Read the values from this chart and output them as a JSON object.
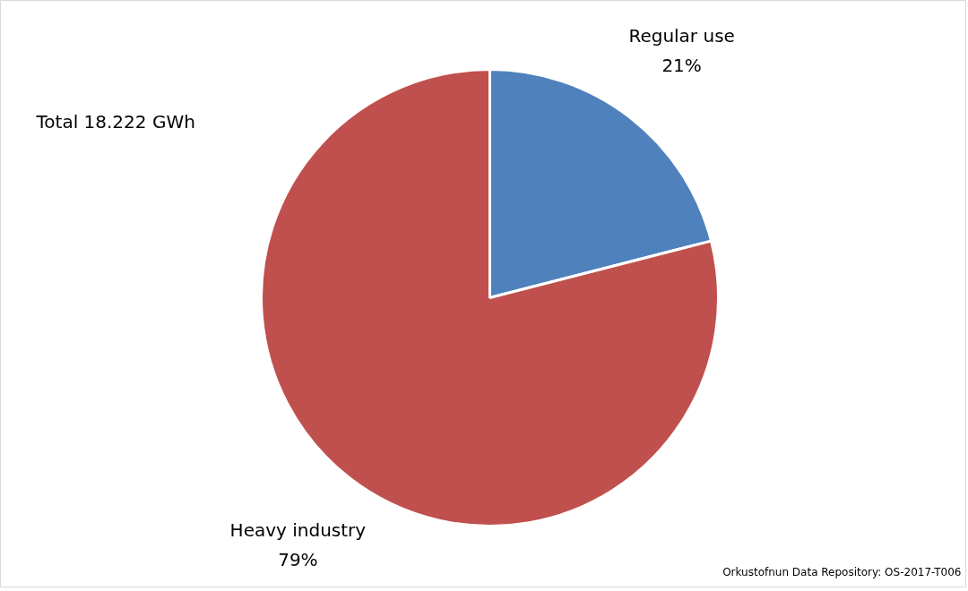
{
  "chart_data": {
    "type": "pie",
    "categories": [
      "Regular use",
      "Heavy industry"
    ],
    "values": [
      21,
      79
    ],
    "colors": [
      "#4f81bd",
      "#c0504d"
    ],
    "value_labels": [
      "21%",
      "79%"
    ],
    "annotations": [
      "Total  18.222 GWh",
      "Orkustofnun Data Repository: OS-2017-T006"
    ]
  }
}
